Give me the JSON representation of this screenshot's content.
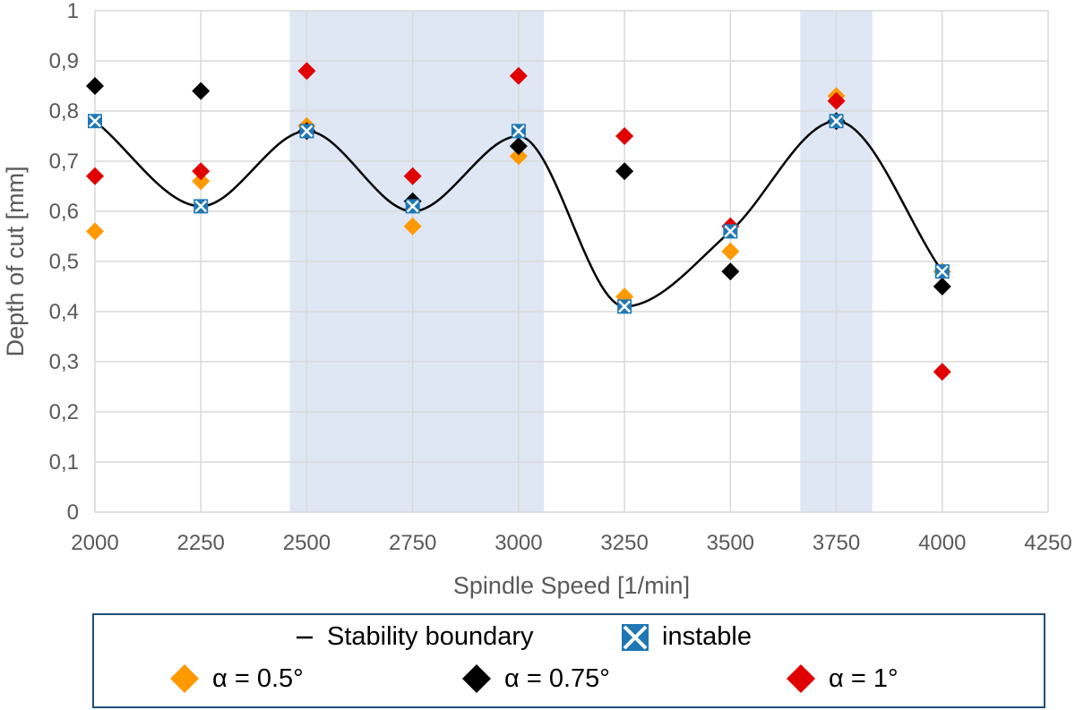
{
  "chart_data": {
    "type": "scatter",
    "xlabel": "Spindle Speed [1/min]",
    "ylabel": "Depth of cut [mm]",
    "xlim": [
      2000,
      4250
    ],
    "ylim": [
      0,
      1
    ],
    "x_ticks": [
      "2000",
      "2250",
      "2500",
      "2750",
      "3000",
      "3250",
      "3500",
      "3750",
      "4000",
      "4250"
    ],
    "y_ticks": [
      "0",
      "0,1",
      "0,2",
      "0,3",
      "0,4",
      "0,5",
      "0,6",
      "0,7",
      "0,8",
      "0,9",
      "1"
    ],
    "grid": true,
    "shaded_x_ranges": [
      [
        2460,
        3060
      ],
      [
        3665,
        3835
      ]
    ],
    "shaded_color": "#dfe7f5",
    "series": [
      {
        "name": "Stability boundary",
        "kind": "line",
        "color": "#000000",
        "x": [
          2000,
          2250,
          2500,
          2750,
          3000,
          3250,
          3500,
          3750,
          4000
        ],
        "y": [
          0.78,
          0.61,
          0.76,
          0.6,
          0.75,
          0.41,
          0.56,
          0.78,
          0.48
        ]
      },
      {
        "name": "instable",
        "kind": "marker",
        "color": "#1f77b4",
        "x": [
          2000,
          2250,
          2500,
          2750,
          3000,
          3250,
          3500,
          3750,
          4000
        ],
        "y": [
          0.78,
          0.61,
          0.76,
          0.61,
          0.76,
          0.41,
          0.56,
          0.78,
          0.48
        ]
      },
      {
        "name": "α = 0.5°",
        "kind": "marker",
        "color": "#ff9900",
        "x": [
          2000,
          2250,
          2500,
          2750,
          3000,
          3250,
          3500,
          3750,
          4000
        ],
        "y": [
          0.56,
          0.66,
          0.77,
          0.57,
          0.71,
          0.43,
          0.52,
          0.83,
          0.48
        ]
      },
      {
        "name": "α = 0.75°",
        "kind": "marker",
        "color": "#000000",
        "x": [
          2000,
          2250,
          2500,
          2750,
          3000,
          3250,
          3500,
          3750,
          4000
        ],
        "y": [
          0.85,
          0.84,
          0.76,
          0.62,
          0.73,
          0.68,
          0.48,
          0.78,
          0.45
        ]
      },
      {
        "name": "α = 1°",
        "kind": "marker",
        "color": "#e00000",
        "x": [
          2000,
          2250,
          2500,
          2750,
          3000,
          3250,
          3500,
          3750,
          4000
        ],
        "y": [
          0.67,
          0.68,
          0.88,
          0.67,
          0.87,
          0.75,
          0.57,
          0.82,
          0.28
        ]
      }
    ]
  },
  "legend": {
    "line_label": "Stability boundary",
    "instable_label": "instable",
    "a05_label": "α = 0.5°",
    "a075_label": "α = 0.75°",
    "a1_label": "α = 1°"
  }
}
